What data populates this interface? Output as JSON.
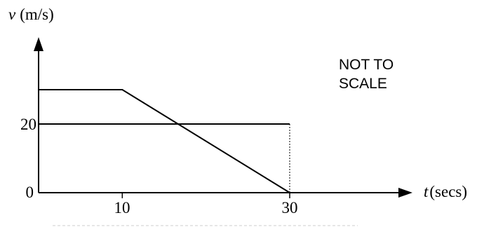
{
  "chart_data": {
    "type": "line",
    "title": "",
    "xlabel_var": "t",
    "xlabel_unit": "(secs)",
    "ylabel_var": "v",
    "ylabel_unit": "(m/s)",
    "annotation_line1": "NOT TO",
    "annotation_line2": "SCALE",
    "xlim": [
      0,
      36
    ],
    "ylim": [
      0,
      34
    ],
    "x_ticks": [
      "10",
      "30"
    ],
    "y_ticks": [
      "20"
    ],
    "origin_label": "0",
    "grid": false,
    "legend": "none",
    "series": [
      {
        "x": [
          0,
          10,
          30
        ],
        "y": [
          30,
          30,
          0
        ]
      },
      {
        "x": [
          0,
          30
        ],
        "y": [
          20,
          20
        ]
      }
    ],
    "reference_lines": [
      {
        "type": "vertical-dotted",
        "x": 30,
        "y_from": 0,
        "y_to": 20
      }
    ]
  }
}
